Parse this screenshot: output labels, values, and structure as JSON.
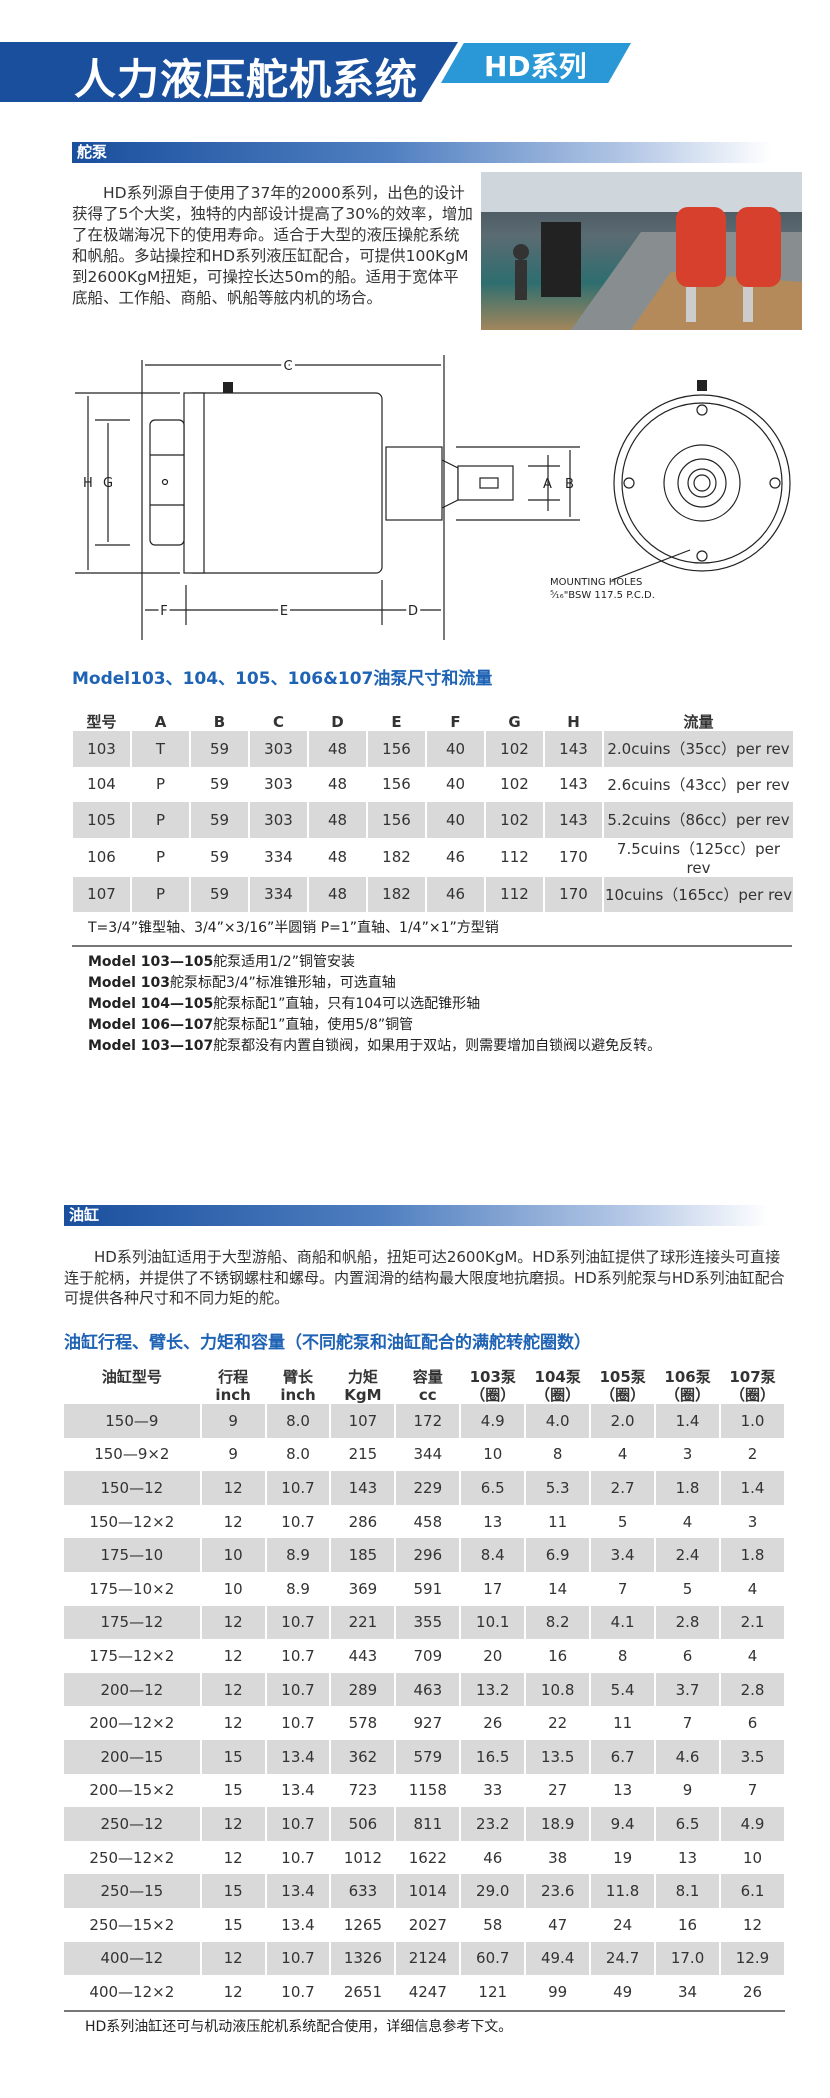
{
  "header": {
    "title": "人力液压舵机系统",
    "series": "HD系列"
  },
  "colors": {
    "dark_blue": "#1a4f9e",
    "light_blue": "#2a97d6",
    "title_blue": "#1f63b5",
    "row_gray": "#d9d9d9"
  },
  "pump": {
    "section": "舵泵",
    "intro": "HD系列源自于使用了37年的2000系列，出色的设计获得了5个大奖，独特的内部设计提高了30%的效率，增加了在极端海况下的使用寿命。适合于大型的液压操舵系统和帆船。多站操控和HD系列液压缸配合，可提供100KgM到2600KgM扭矩，可操控长达50m的船。适用于宽体平底船、工作船、商船、帆船等舷内机的场合。",
    "diagram": {
      "labels": [
        "C",
        "H",
        "G",
        "F",
        "E",
        "D",
        "A",
        "B"
      ],
      "note1": "MOUNTING HOLES",
      "note2": "⁵⁄₁₆\"BSW  117.5  P.C.D."
    },
    "table_title": "Model103、104、105、106&107油泵尺寸和流量",
    "columns": [
      "型号",
      "A",
      "B",
      "C",
      "D",
      "E",
      "F",
      "G",
      "H",
      "流量"
    ],
    "rows": [
      [
        "103",
        "T",
        "59",
        "303",
        "48",
        "156",
        "40",
        "102",
        "143",
        "2.0cuins（35cc）per rev"
      ],
      [
        "104",
        "P",
        "59",
        "303",
        "48",
        "156",
        "40",
        "102",
        "143",
        "2.6cuins（43cc）per rev"
      ],
      [
        "105",
        "P",
        "59",
        "303",
        "48",
        "156",
        "40",
        "102",
        "143",
        "5.2cuins（86cc）per rev"
      ],
      [
        "106",
        "P",
        "59",
        "334",
        "48",
        "182",
        "46",
        "112",
        "170",
        "7.5cuins（125cc）per rev"
      ],
      [
        "107",
        "P",
        "59",
        "334",
        "48",
        "182",
        "46",
        "112",
        "170",
        "10cuins（165cc）per rev"
      ]
    ],
    "footnote": "T=3/4”锥型轴、3/4”×3/16”半圆销     P=1”直轴、1/4”×1”方型销",
    "notes": [
      {
        "model": "Model 103—105",
        "text": "舵泵适用1/2”铜管安装"
      },
      {
        "model": "Model 103",
        "text": "舵泵标配3/4”标准锥形轴，可选直轴"
      },
      {
        "model": "Model 104—105",
        "text": "舵泵标配1”直轴，只有104可以选配锥形轴"
      },
      {
        "model": "Model 106—107",
        "text": "舵泵标配1”直轴，使用5/8”铜管"
      },
      {
        "model": "Model 103—107",
        "text": "舵泵都没有内置自锁阀，如果用于双站，则需要增加自锁阀以避免反转。"
      }
    ]
  },
  "cylinder": {
    "section": "油缸",
    "intro": "HD系列油缸适用于大型游船、商船和帆船，扭矩可达2600KgM。HD系列油缸提供了球形连接头可直接连于舵柄，并提供了不锈钢螺柱和螺母。内置润滑的结构最大限度地抗磨损。HD系列舵泵与HD系列油缸配合可提供各种尺寸和不同力矩的舵。",
    "table_title": "油缸行程、臂长、力矩和容量（不同舵泵和油缸配合的满舵转舵圈数）",
    "columns": [
      [
        "油缸型号",
        ""
      ],
      [
        "行程",
        "inch"
      ],
      [
        "臂长",
        "inch"
      ],
      [
        "力矩",
        "KgM"
      ],
      [
        "容量",
        "cc"
      ],
      [
        "103泵",
        "（圈）"
      ],
      [
        "104泵",
        "（圈）"
      ],
      [
        "105泵",
        "（圈）"
      ],
      [
        "106泵",
        "（圈）"
      ],
      [
        "107泵",
        "（圈）"
      ]
    ],
    "rows": [
      [
        "150—9",
        "9",
        "8.0",
        "107",
        "172",
        "4.9",
        "4.0",
        "2.0",
        "1.4",
        "1.0"
      ],
      [
        "150—9×2",
        "9",
        "8.0",
        "215",
        "344",
        "10",
        "8",
        "4",
        "3",
        "2"
      ],
      [
        "150—12",
        "12",
        "10.7",
        "143",
        "229",
        "6.5",
        "5.3",
        "2.7",
        "1.8",
        "1.4"
      ],
      [
        "150—12×2",
        "12",
        "10.7",
        "286",
        "458",
        "13",
        "11",
        "5",
        "4",
        "3"
      ],
      [
        "175—10",
        "10",
        "8.9",
        "185",
        "296",
        "8.4",
        "6.9",
        "3.4",
        "2.4",
        "1.8"
      ],
      [
        "175—10×2",
        "10",
        "8.9",
        "369",
        "591",
        "17",
        "14",
        "7",
        "5",
        "4"
      ],
      [
        "175—12",
        "12",
        "10.7",
        "221",
        "355",
        "10.1",
        "8.2",
        "4.1",
        "2.8",
        "2.1"
      ],
      [
        "175—12×2",
        "12",
        "10.7",
        "443",
        "709",
        "20",
        "16",
        "8",
        "6",
        "4"
      ],
      [
        "200—12",
        "12",
        "10.7",
        "289",
        "463",
        "13.2",
        "10.8",
        "5.4",
        "3.7",
        "2.8"
      ],
      [
        "200—12×2",
        "12",
        "10.7",
        "578",
        "927",
        "26",
        "22",
        "11",
        "7",
        "6"
      ],
      [
        "200—15",
        "15",
        "13.4",
        "362",
        "579",
        "16.5",
        "13.5",
        "6.7",
        "4.6",
        "3.5"
      ],
      [
        "200—15×2",
        "15",
        "13.4",
        "723",
        "1158",
        "33",
        "27",
        "13",
        "9",
        "7"
      ],
      [
        "250—12",
        "12",
        "10.7",
        "506",
        "811",
        "23.2",
        "18.9",
        "9.4",
        "6.5",
        "4.9"
      ],
      [
        "250—12×2",
        "12",
        "10.7",
        "1012",
        "1622",
        "46",
        "38",
        "19",
        "13",
        "10"
      ],
      [
        "250—15",
        "15",
        "13.4",
        "633",
        "1014",
        "29.0",
        "23.6",
        "11.8",
        "8.1",
        "6.1"
      ],
      [
        "250—15×2",
        "15",
        "13.4",
        "1265",
        "2027",
        "58",
        "47",
        "24",
        "16",
        "12"
      ],
      [
        "400—12",
        "12",
        "10.7",
        "1326",
        "2124",
        "60.7",
        "49.4",
        "24.7",
        "17.0",
        "12.9"
      ],
      [
        "400—12×2",
        "12",
        "10.7",
        "2651",
        "4247",
        "121",
        "99",
        "49",
        "34",
        "26"
      ]
    ],
    "footer": "HD系列油缸还可与机动液压舵机系统配合使用，详细信息参考下文。"
  }
}
